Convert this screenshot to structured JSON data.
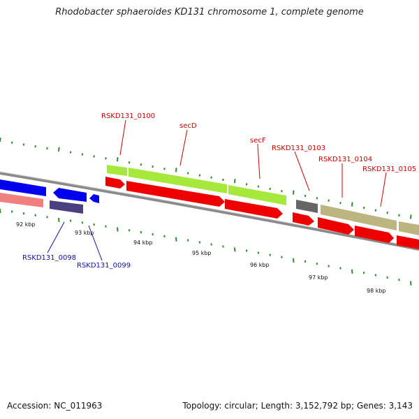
{
  "title": "Rhodobacter sphaeroides KD131 chromosome 1, complete genome",
  "accession": "Accession: NC_011963",
  "meta": "Topology: circular; Length: 3,152,792 bp; Genes: 3,143",
  "colors": {
    "backbone": "#8a8a8a",
    "tick": "#2e8b2e",
    "red_label": "#cc0000",
    "blue_label": "#1010a0"
  },
  "scale": {
    "labels": [
      "92 kbp",
      "93 kbp",
      "94 kbp",
      "95 kbp",
      "96 kbp",
      "97 kbp",
      "98 kbp"
    ]
  },
  "genes": {
    "labels_above": [
      "RSKD131_0100",
      "secD",
      "secF",
      "RSKD131_0103",
      "RSKD131_0104",
      "RSKD131_0105"
    ],
    "labels_below": [
      "RSKD131_0098",
      "RSKD131_0099"
    ]
  }
}
